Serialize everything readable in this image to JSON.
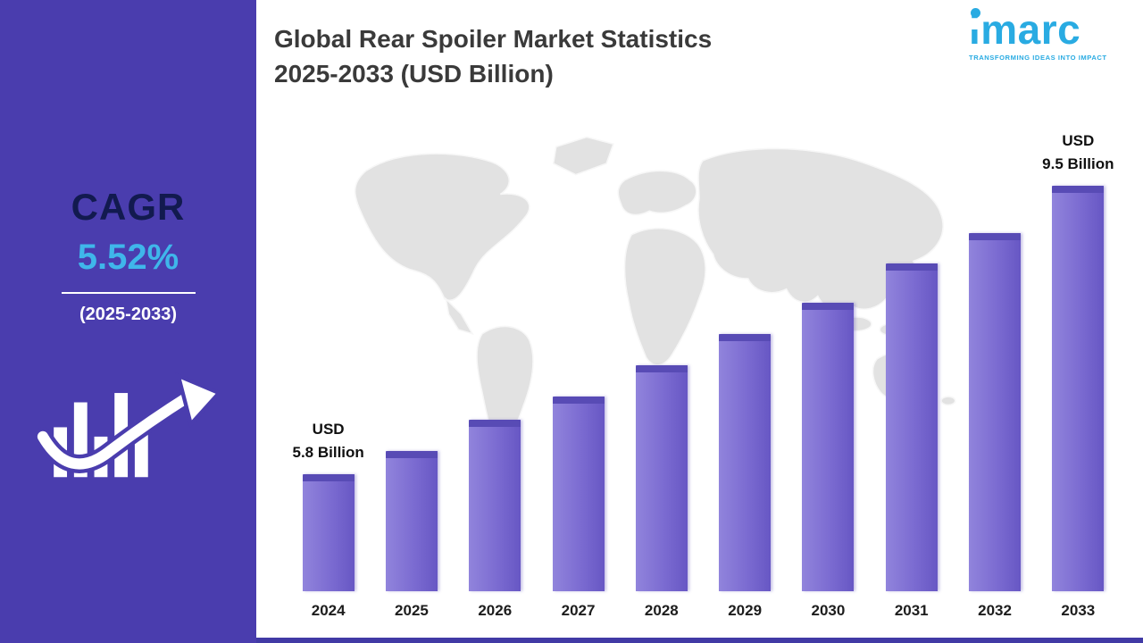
{
  "title": {
    "line1": "Global Rear Spoiler Market Statistics",
    "line2": "2025-2033 (USD Billion)"
  },
  "logo": {
    "text": "imarc",
    "tagline": "TRANSFORMING IDEAS INTO IMPACT",
    "brand_color": "#29abe2"
  },
  "sidebar": {
    "cagr_label": "CAGR",
    "cagr_value": "5.52%",
    "period": "(2025-2033)",
    "background_color": "#4a3dae",
    "cagr_value_color": "#3fb6ea"
  },
  "chart_data": {
    "type": "bar",
    "title": "Global Rear Spoiler Market Statistics 2025-2033 (USD Billion)",
    "unit": "USD Billion",
    "categories": [
      "2024",
      "2025",
      "2026",
      "2027",
      "2028",
      "2029",
      "2030",
      "2031",
      "2032",
      "2033"
    ],
    "values": [
      5.8,
      6.1,
      6.5,
      6.8,
      7.2,
      7.6,
      8.0,
      8.5,
      8.9,
      9.5
    ],
    "ylim": [
      4.3,
      9.8
    ],
    "grid": false,
    "legend": false,
    "bar_color_light": "#9184dc",
    "bar_color": "#7b6bd1",
    "bar_color_dark": "#6757c4",
    "bar_cap_color": "#584bb5",
    "annotations": [
      {
        "category": "2024",
        "lines": [
          "USD",
          "5.8 Billion"
        ]
      },
      {
        "category": "2033",
        "lines": [
          "USD",
          "9.5 Billion"
        ]
      }
    ],
    "cagr": "5.52%",
    "cagr_period": "2025-2033"
  }
}
